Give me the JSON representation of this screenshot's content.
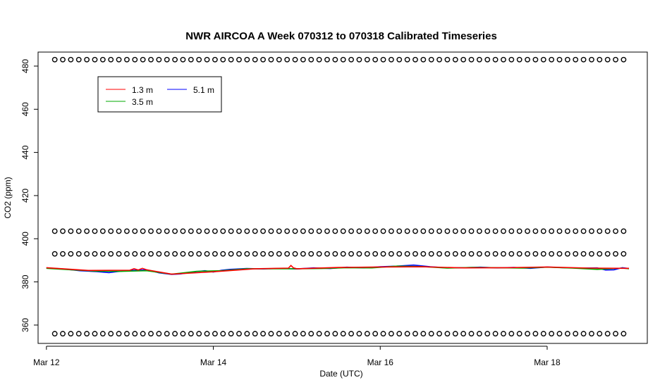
{
  "chart_data": {
    "type": "line",
    "title": "NWR AIRCOA A  Week 070312 to 070318  Calibrated Timeseries",
    "xlabel": "Date (UTC)",
    "ylabel": "CO2 (ppm)",
    "xlim": [
      -0.1,
      7.2
    ],
    "ylim": [
      351.5,
      486.5
    ],
    "x_ticks": [
      {
        "value": 0,
        "label": "Mar 12"
      },
      {
        "value": 2,
        "label": "Mar 14"
      },
      {
        "value": 4,
        "label": "Mar 16"
      },
      {
        "value": 6,
        "label": "Mar 18"
      }
    ],
    "y_ticks": [
      360,
      380,
      400,
      420,
      440,
      460,
      480
    ],
    "grid": false,
    "legend": {
      "position": "top-left",
      "entries": [
        {
          "name": "1.3 m",
          "color": "#ff0000"
        },
        {
          "name": "5.1 m",
          "color": "#0000ff"
        },
        {
          "name": "3.5 m",
          "color": "#00aa00"
        }
      ]
    },
    "calibration_points": {
      "marker": "circle",
      "levels": [
        483,
        403.5,
        393,
        356
      ],
      "x_start": 0.1,
      "x_end": 6.98,
      "spacing": 0.096
    },
    "series": [
      {
        "name": "5.1 m",
        "color": "#0000ff",
        "x": [
          0.0,
          0.2,
          0.4,
          0.6,
          0.75,
          0.85,
          1.0,
          1.2,
          1.35,
          1.5,
          1.6,
          1.7,
          1.8,
          1.9,
          2.0,
          2.1,
          2.2,
          2.4,
          2.6,
          2.8,
          3.0,
          3.2,
          3.4,
          3.6,
          3.8,
          4.0,
          4.2,
          4.4,
          4.6,
          4.8,
          5.0,
          5.2,
          5.4,
          5.6,
          5.8,
          6.0,
          6.2,
          6.4,
          6.6,
          6.7,
          6.8,
          6.9,
          6.98
        ],
        "y": [
          386.5,
          386,
          385.2,
          384.8,
          384.3,
          384.8,
          385.3,
          385.6,
          384.2,
          383.5,
          383.7,
          384.2,
          384.8,
          385.2,
          384.6,
          385.4,
          385.8,
          386.2,
          386.0,
          386.3,
          386.0,
          386.5,
          386.2,
          386.8,
          386.5,
          387.0,
          387.3,
          387.8,
          387.0,
          386.5,
          386.6,
          386.8,
          386.5,
          386.7,
          386.3,
          386.9,
          386.6,
          386.4,
          386.5,
          385.5,
          385.6,
          386.6,
          386.2
        ]
      },
      {
        "name": "3.5 m",
        "color": "#00aa00",
        "x": [
          0.0,
          0.3,
          0.6,
          0.9,
          1.2,
          1.5,
          1.8,
          2.1,
          2.4,
          2.7,
          3.0,
          3.3,
          3.6,
          3.9,
          4.2,
          4.5,
          4.8,
          5.1,
          5.4,
          5.7,
          6.0,
          6.3,
          6.6,
          6.9,
          6.98
        ],
        "y": [
          386.3,
          385.6,
          385.0,
          384.9,
          385.2,
          383.6,
          384.9,
          385.2,
          386.1,
          386.1,
          386.1,
          386.2,
          386.6,
          386.5,
          387.3,
          387.1,
          386.4,
          386.7,
          386.6,
          386.4,
          386.8,
          386.4,
          385.8,
          386.4,
          386.1
        ]
      },
      {
        "name": "1.3 m",
        "color": "#ff0000",
        "x": [
          0.0,
          0.5,
          1.0,
          1.05,
          1.1,
          1.15,
          1.2,
          1.5,
          2.0,
          2.5,
          2.9,
          2.93,
          2.96,
          3.0,
          3.5,
          4.0,
          4.5,
          5.0,
          5.5,
          6.0,
          6.5,
          6.98
        ],
        "y": [
          386.6,
          385.3,
          385.4,
          386.1,
          385.5,
          386.3,
          385.6,
          383.6,
          384.7,
          386.1,
          386.4,
          387.6,
          386.5,
          386.1,
          386.7,
          386.9,
          387.0,
          386.5,
          386.6,
          386.9,
          386.4,
          386.3
        ]
      }
    ]
  }
}
